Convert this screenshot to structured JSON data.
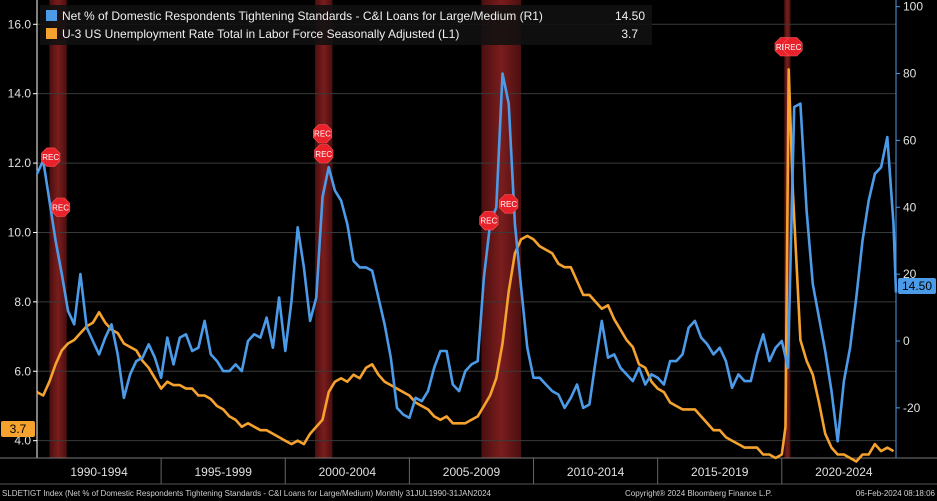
{
  "chart_data": {
    "type": "line",
    "x_range": [
      1990.0,
      2024.6
    ],
    "recessions": [
      [
        1990.5,
        1991.2
      ],
      [
        2001.2,
        2001.9
      ],
      [
        2007.9,
        2009.5
      ],
      [
        2020.1,
        2020.35
      ]
    ],
    "rec_label": "REC",
    "left_axis": {
      "ticks": [
        "4.0",
        "6.0",
        "8.0",
        "10.0",
        "12.0",
        "14.0",
        "16.0"
      ],
      "range": [
        3.5,
        16.7
      ]
    },
    "right_axis": {
      "ticks": [
        "-20",
        "0",
        "20",
        "40",
        "60",
        "80",
        "100"
      ],
      "range": [
        -35,
        102
      ]
    },
    "periods": [
      "1990-1994",
      "1995-1999",
      "2000-2004",
      "2005-2009",
      "2010-2014",
      "2015-2019",
      "2020-2024"
    ],
    "series": [
      {
        "name": "Net % of Domestic Respondents Tightening Standards - C&I Loans for Large/Medium (R1)",
        "last_value": "14.50",
        "tag": "14.50",
        "axis": "right",
        "color": "#4c9be8",
        "points": [
          [
            1990.0,
            50
          ],
          [
            1990.25,
            54
          ],
          [
            1990.5,
            42
          ],
          [
            1990.75,
            30
          ],
          [
            1991.0,
            20
          ],
          [
            1991.25,
            9
          ],
          [
            1991.5,
            5
          ],
          [
            1991.75,
            20
          ],
          [
            1992.0,
            4
          ],
          [
            1992.25,
            0
          ],
          [
            1992.5,
            -4
          ],
          [
            1992.75,
            1
          ],
          [
            1993.0,
            5
          ],
          [
            1993.25,
            -4
          ],
          [
            1993.5,
            -17
          ],
          [
            1993.75,
            -10
          ],
          [
            1994.0,
            -6
          ],
          [
            1994.25,
            -5
          ],
          [
            1994.5,
            -1
          ],
          [
            1994.75,
            -5
          ],
          [
            1995.0,
            -11
          ],
          [
            1995.25,
            1
          ],
          [
            1995.5,
            -7
          ],
          [
            1995.75,
            1
          ],
          [
            1996.0,
            2
          ],
          [
            1996.25,
            -3
          ],
          [
            1996.5,
            -2
          ],
          [
            1996.75,
            6
          ],
          [
            1997.0,
            -4
          ],
          [
            1997.25,
            -6
          ],
          [
            1997.5,
            -9
          ],
          [
            1997.75,
            -9
          ],
          [
            1998.0,
            -7
          ],
          [
            1998.25,
            -9
          ],
          [
            1998.5,
            0
          ],
          [
            1998.75,
            2
          ],
          [
            1999.0,
            1
          ],
          [
            1999.25,
            7
          ],
          [
            1999.5,
            -2
          ],
          [
            1999.75,
            13
          ],
          [
            2000.0,
            -3
          ],
          [
            2000.25,
            12
          ],
          [
            2000.5,
            34
          ],
          [
            2000.75,
            22
          ],
          [
            2001.0,
            6
          ],
          [
            2001.25,
            13
          ],
          [
            2001.5,
            43
          ],
          [
            2001.75,
            52
          ],
          [
            2002.0,
            45
          ],
          [
            2002.25,
            42
          ],
          [
            2002.5,
            35
          ],
          [
            2002.75,
            24
          ],
          [
            2003.0,
            22
          ],
          [
            2003.25,
            22
          ],
          [
            2003.5,
            21
          ],
          [
            2003.75,
            13
          ],
          [
            2004.0,
            5
          ],
          [
            2004.25,
            -5
          ],
          [
            2004.5,
            -20
          ],
          [
            2004.75,
            -22
          ],
          [
            2005.0,
            -23
          ],
          [
            2005.25,
            -17
          ],
          [
            2005.5,
            -18
          ],
          [
            2005.75,
            -15
          ],
          [
            2006.0,
            -8
          ],
          [
            2006.25,
            -3
          ],
          [
            2006.5,
            -3
          ],
          [
            2006.75,
            -13
          ],
          [
            2007.0,
            -15
          ],
          [
            2007.25,
            -9
          ],
          [
            2007.5,
            -7
          ],
          [
            2007.75,
            -6
          ],
          [
            2008.0,
            19
          ],
          [
            2008.25,
            35
          ],
          [
            2008.5,
            40
          ],
          [
            2008.75,
            80
          ],
          [
            2009.0,
            71
          ],
          [
            2009.25,
            35
          ],
          [
            2009.5,
            16
          ],
          [
            2009.75,
            -2
          ],
          [
            2010.0,
            -11
          ],
          [
            2010.25,
            -11
          ],
          [
            2010.5,
            -13
          ],
          [
            2010.75,
            -15
          ],
          [
            2011.0,
            -16
          ],
          [
            2011.25,
            -20
          ],
          [
            2011.5,
            -17
          ],
          [
            2011.75,
            -13
          ],
          [
            2012.0,
            -20
          ],
          [
            2012.25,
            -19
          ],
          [
            2012.5,
            -6
          ],
          [
            2012.75,
            6
          ],
          [
            2013.0,
            -5
          ],
          [
            2013.25,
            -4
          ],
          [
            2013.5,
            -8
          ],
          [
            2013.75,
            -10
          ],
          [
            2014.0,
            -12
          ],
          [
            2014.25,
            -8
          ],
          [
            2014.5,
            -13
          ],
          [
            2014.75,
            -10
          ],
          [
            2015.0,
            -11
          ],
          [
            2015.25,
            -13
          ],
          [
            2015.5,
            -6
          ],
          [
            2015.75,
            -6
          ],
          [
            2016.0,
            -4
          ],
          [
            2016.25,
            4
          ],
          [
            2016.5,
            6
          ],
          [
            2016.75,
            1
          ],
          [
            2017.0,
            -1
          ],
          [
            2017.25,
            -4
          ],
          [
            2017.5,
            -2
          ],
          [
            2017.75,
            -6
          ],
          [
            2018.0,
            -14
          ],
          [
            2018.25,
            -10
          ],
          [
            2018.5,
            -12
          ],
          [
            2018.75,
            -12
          ],
          [
            2019.0,
            -4
          ],
          [
            2019.25,
            2
          ],
          [
            2019.5,
            -6
          ],
          [
            2019.75,
            -2
          ],
          [
            2020.0,
            0
          ],
          [
            2020.25,
            -8
          ],
          [
            2020.5,
            70
          ],
          [
            2020.75,
            71
          ],
          [
            2021.0,
            39
          ],
          [
            2021.25,
            17
          ],
          [
            2021.5,
            7
          ],
          [
            2021.75,
            -3
          ],
          [
            2022.0,
            -15
          ],
          [
            2022.25,
            -30
          ],
          [
            2022.5,
            -12
          ],
          [
            2022.75,
            -2
          ],
          [
            2023.0,
            13
          ],
          [
            2023.25,
            30
          ],
          [
            2023.5,
            42
          ],
          [
            2023.75,
            50
          ],
          [
            2024.0,
            52
          ],
          [
            2024.25,
            61
          ],
          [
            2024.5,
            35
          ],
          [
            2024.6,
            14.5
          ]
        ]
      },
      {
        "name": "U-3 US Unemployment Rate Total in Labor Force Seasonally Adjusted  (L1)",
        "last_value": "3.7",
        "tag": "3.7",
        "axis": "left",
        "color": "#f5a22e",
        "points": [
          [
            1990.0,
            5.4
          ],
          [
            1990.25,
            5.3
          ],
          [
            1990.5,
            5.7
          ],
          [
            1990.75,
            6.2
          ],
          [
            1991.0,
            6.6
          ],
          [
            1991.25,
            6.8
          ],
          [
            1991.5,
            6.9
          ],
          [
            1991.75,
            7.1
          ],
          [
            1992.0,
            7.3
          ],
          [
            1992.25,
            7.4
          ],
          [
            1992.5,
            7.7
          ],
          [
            1992.75,
            7.4
          ],
          [
            1993.0,
            7.2
          ],
          [
            1993.25,
            7.1
          ],
          [
            1993.5,
            6.8
          ],
          [
            1993.75,
            6.7
          ],
          [
            1994.0,
            6.6
          ],
          [
            1994.25,
            6.3
          ],
          [
            1994.5,
            6.1
          ],
          [
            1994.75,
            5.8
          ],
          [
            1995.0,
            5.5
          ],
          [
            1995.25,
            5.7
          ],
          [
            1995.5,
            5.6
          ],
          [
            1995.75,
            5.6
          ],
          [
            1996.0,
            5.5
          ],
          [
            1996.25,
            5.5
          ],
          [
            1996.5,
            5.3
          ],
          [
            1996.75,
            5.3
          ],
          [
            1997.0,
            5.2
          ],
          [
            1997.25,
            5.0
          ],
          [
            1997.5,
            4.9
          ],
          [
            1997.75,
            4.7
          ],
          [
            1998.0,
            4.6
          ],
          [
            1998.25,
            4.4
          ],
          [
            1998.5,
            4.5
          ],
          [
            1998.75,
            4.4
          ],
          [
            1999.0,
            4.3
          ],
          [
            1999.25,
            4.3
          ],
          [
            1999.5,
            4.2
          ],
          [
            1999.75,
            4.1
          ],
          [
            2000.0,
            4.0
          ],
          [
            2000.25,
            3.9
          ],
          [
            2000.5,
            4.0
          ],
          [
            2000.75,
            3.9
          ],
          [
            2001.0,
            4.2
          ],
          [
            2001.25,
            4.4
          ],
          [
            2001.5,
            4.6
          ],
          [
            2001.75,
            5.4
          ],
          [
            2002.0,
            5.7
          ],
          [
            2002.25,
            5.8
          ],
          [
            2002.5,
            5.7
          ],
          [
            2002.75,
            5.9
          ],
          [
            2003.0,
            5.8
          ],
          [
            2003.25,
            6.1
          ],
          [
            2003.5,
            6.2
          ],
          [
            2003.75,
            5.9
          ],
          [
            2004.0,
            5.7
          ],
          [
            2004.25,
            5.6
          ],
          [
            2004.5,
            5.5
          ],
          [
            2004.75,
            5.4
          ],
          [
            2005.0,
            5.3
          ],
          [
            2005.25,
            5.1
          ],
          [
            2005.5,
            5.0
          ],
          [
            2005.75,
            4.9
          ],
          [
            2006.0,
            4.7
          ],
          [
            2006.25,
            4.6
          ],
          [
            2006.5,
            4.7
          ],
          [
            2006.75,
            4.5
          ],
          [
            2007.0,
            4.5
          ],
          [
            2007.25,
            4.5
          ],
          [
            2007.5,
            4.6
          ],
          [
            2007.75,
            4.7
          ],
          [
            2008.0,
            5.0
          ],
          [
            2008.25,
            5.3
          ],
          [
            2008.5,
            5.8
          ],
          [
            2008.75,
            6.8
          ],
          [
            2009.0,
            8.3
          ],
          [
            2009.25,
            9.4
          ],
          [
            2009.5,
            9.8
          ],
          [
            2009.75,
            9.9
          ],
          [
            2010.0,
            9.8
          ],
          [
            2010.25,
            9.6
          ],
          [
            2010.5,
            9.5
          ],
          [
            2010.75,
            9.4
          ],
          [
            2011.0,
            9.1
          ],
          [
            2011.25,
            9.0
          ],
          [
            2011.5,
            9.0
          ],
          [
            2011.75,
            8.6
          ],
          [
            2012.0,
            8.2
          ],
          [
            2012.25,
            8.2
          ],
          [
            2012.5,
            8.0
          ],
          [
            2012.75,
            7.8
          ],
          [
            2013.0,
            7.9
          ],
          [
            2013.25,
            7.5
          ],
          [
            2013.5,
            7.2
          ],
          [
            2013.75,
            6.9
          ],
          [
            2014.0,
            6.7
          ],
          [
            2014.25,
            6.2
          ],
          [
            2014.5,
            6.1
          ],
          [
            2014.75,
            5.7
          ],
          [
            2015.0,
            5.5
          ],
          [
            2015.25,
            5.4
          ],
          [
            2015.5,
            5.1
          ],
          [
            2015.75,
            5.0
          ],
          [
            2016.0,
            4.9
          ],
          [
            2016.25,
            4.9
          ],
          [
            2016.5,
            4.9
          ],
          [
            2016.75,
            4.7
          ],
          [
            2017.0,
            4.5
          ],
          [
            2017.25,
            4.3
          ],
          [
            2017.5,
            4.3
          ],
          [
            2017.75,
            4.1
          ],
          [
            2018.0,
            4.0
          ],
          [
            2018.25,
            3.9
          ],
          [
            2018.5,
            3.8
          ],
          [
            2018.75,
            3.8
          ],
          [
            2019.0,
            3.8
          ],
          [
            2019.25,
            3.6
          ],
          [
            2019.5,
            3.6
          ],
          [
            2019.75,
            3.5
          ],
          [
            2020.0,
            3.6
          ],
          [
            2020.15,
            4.4
          ],
          [
            2020.28,
            14.7
          ],
          [
            2020.45,
            11.1
          ],
          [
            2020.75,
            6.9
          ],
          [
            2021.0,
            6.3
          ],
          [
            2021.25,
            5.9
          ],
          [
            2021.5,
            5.1
          ],
          [
            2021.75,
            4.2
          ],
          [
            2022.0,
            3.8
          ],
          [
            2022.25,
            3.6
          ],
          [
            2022.5,
            3.6
          ],
          [
            2022.75,
            3.5
          ],
          [
            2023.0,
            3.4
          ],
          [
            2023.25,
            3.6
          ],
          [
            2023.5,
            3.6
          ],
          [
            2023.75,
            3.9
          ],
          [
            2024.0,
            3.7
          ],
          [
            2024.25,
            3.8
          ],
          [
            2024.5,
            3.7
          ]
        ]
      }
    ]
  },
  "footer": {
    "left": "SLDETIGT Index (Net % of Domestic Respondents Tightening Standards - C&I Loans for Large/Medium)  Monthly 31JUL1990-31JAN2024",
    "center": "Copyright® 2024 Bloomberg Finance L.P.",
    "right": "06-Feb-2024 08:18:06"
  }
}
